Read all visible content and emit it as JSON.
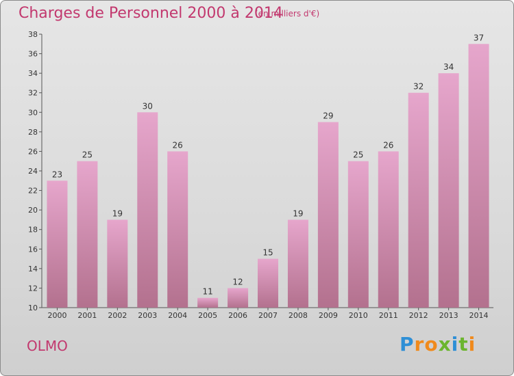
{
  "title": "Charges de Personnel 2000 à 2014",
  "subtitle": "(en milliers d'€)",
  "commune": "OLMO",
  "logo": {
    "letters": [
      "P",
      "r",
      "o",
      "x",
      "i",
      "t",
      "i"
    ],
    "colors": [
      "#2e8fd6",
      "#f08a1c",
      "#f08a1c",
      "#6bb52e",
      "#2e8fd6",
      "#6bb52e",
      "#f08a1c"
    ]
  },
  "chart_data": {
    "type": "bar",
    "categories": [
      "2000",
      "2001",
      "2002",
      "2003",
      "2004",
      "2005",
      "2006",
      "2007",
      "2008",
      "2009",
      "2010",
      "2011",
      "2012",
      "2013",
      "2014"
    ],
    "values": [
      23,
      25,
      19,
      30,
      26,
      11,
      12,
      15,
      19,
      29,
      25,
      26,
      32,
      34,
      37
    ],
    "ylim": [
      10,
      38
    ],
    "yticks": [
      10,
      12,
      14,
      16,
      18,
      20,
      22,
      24,
      26,
      28,
      30,
      32,
      34,
      36,
      38
    ],
    "grid": false,
    "bar_color_top": "#e6a6cc",
    "bar_color_bottom": "#b3718e",
    "axis_color": "#555555"
  }
}
